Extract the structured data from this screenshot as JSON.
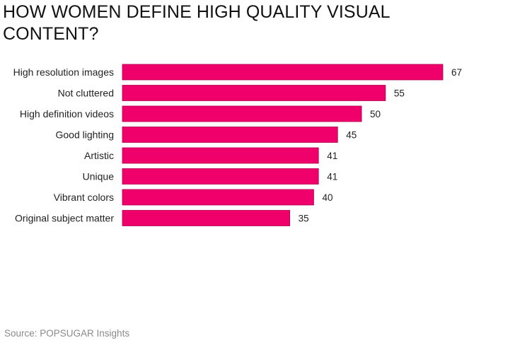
{
  "chart_data": {
    "type": "bar",
    "orientation": "horizontal",
    "title": "HOW WOMEN DEFINE HIGH QUALITY VISUAL CONTENT?",
    "categories": [
      "High resolution images",
      "Not cluttered",
      "High definition videos",
      "Good lighting",
      "Artistic",
      "Unique",
      "Vibrant colors",
      "Original subject matter"
    ],
    "values": [
      67,
      55,
      50,
      45,
      41,
      41,
      40,
      35
    ],
    "xlim": [
      0,
      67
    ],
    "grid": false,
    "bar_color": "#f0006b",
    "bar_outline_color": "#b0004c",
    "data_labels": true
  },
  "source": "Source: POPSUGAR Insights"
}
